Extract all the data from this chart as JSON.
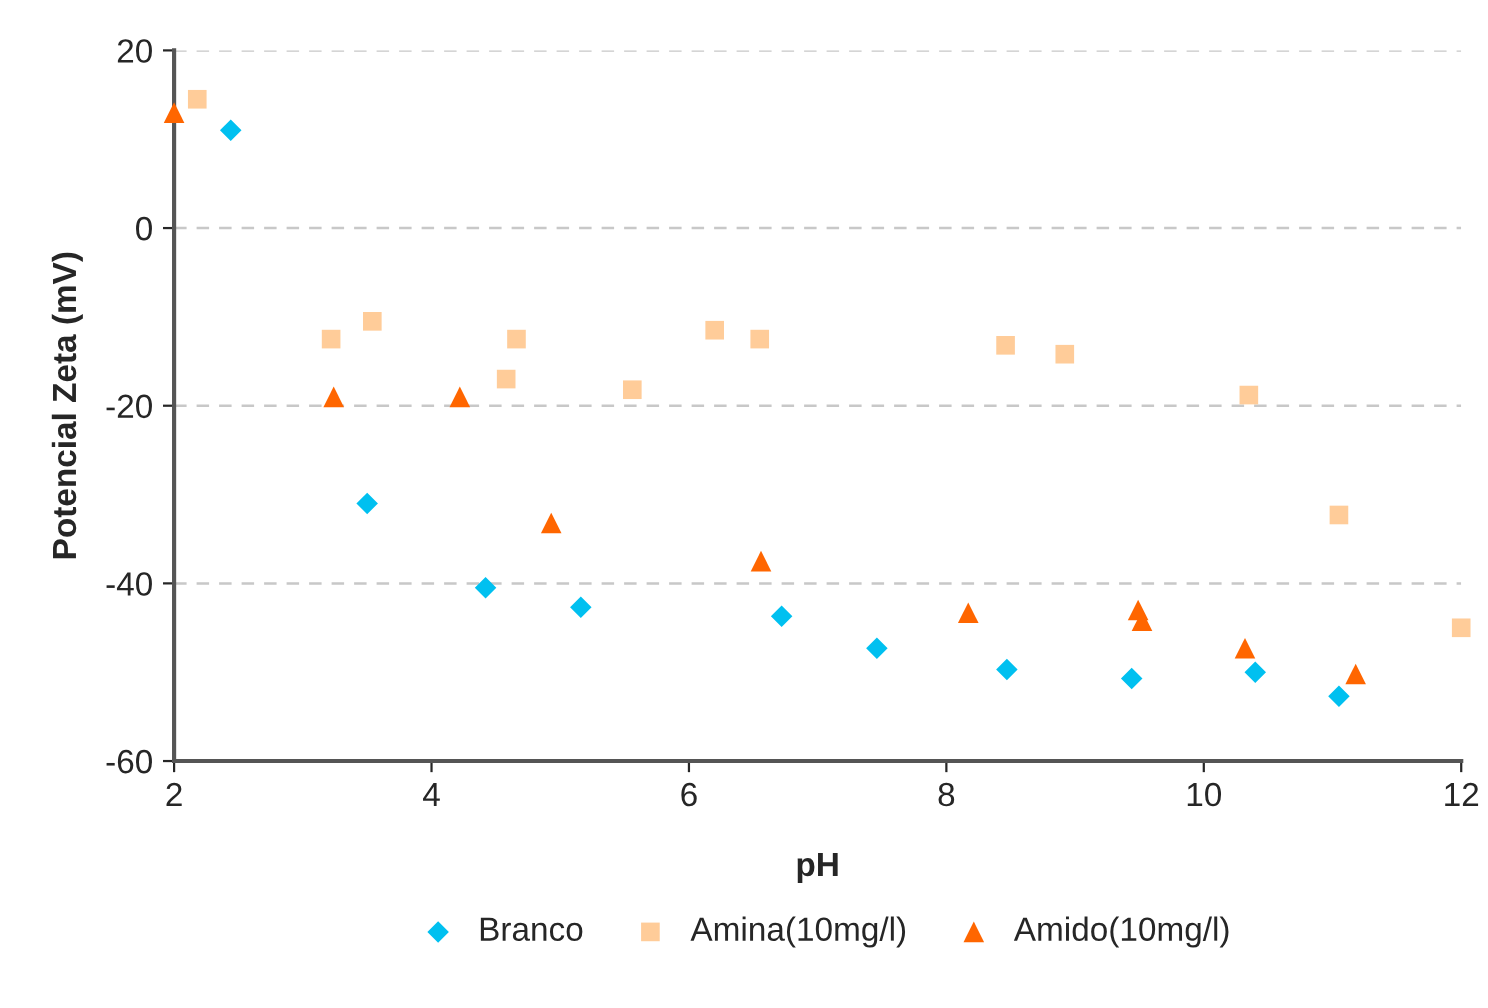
{
  "chart_data": {
    "type": "scatter",
    "xlabel": "pH",
    "ylabel": "Potencial Zeta (mV)",
    "xlim": [
      2,
      12
    ],
    "xticks": [
      2,
      4,
      6,
      8,
      10,
      12
    ],
    "ylim": [
      -60,
      20
    ],
    "yticks": [
      -60,
      -40,
      -20,
      0,
      20
    ],
    "grid": "y",
    "legend": "bottom",
    "series": [
      {
        "name": "Branco",
        "color": "#00c0f0",
        "marker": "diamond",
        "x": [
          2.44,
          3.5,
          4.42,
          5.16,
          6.72,
          7.46,
          8.47,
          9.44,
          10.4,
          11.05
        ],
        "values": [
          11,
          -31,
          -40.5,
          -42.7,
          -43.7,
          -47.3,
          -49.7,
          -50.7,
          -50,
          -52.7
        ]
      },
      {
        "name": "Amina(10mg/l)",
        "color": "#ffcc99",
        "marker": "square",
        "x": [
          2.18,
          3.22,
          3.54,
          4.58,
          4.66,
          5.56,
          6.2,
          6.55,
          8.46,
          8.92,
          10.35,
          11.05,
          12
        ],
        "values": [
          14.5,
          -12.5,
          -10.5,
          -17,
          -12.5,
          -18.2,
          -11.5,
          -12.5,
          -13.2,
          -14.2,
          -18.8,
          -32.3,
          -45
        ]
      },
      {
        "name": "Amido(10mg/l)",
        "color": "#ff6600",
        "marker": "triangle",
        "x": [
          2,
          3.24,
          4.22,
          4.93,
          6.56,
          8.17,
          9.49,
          9.52,
          10.32,
          11.18
        ],
        "values": [
          13,
          -19,
          -19,
          -33.2,
          -37.5,
          -43.3,
          -43,
          -44.2,
          -47.3,
          -50.2
        ]
      }
    ]
  }
}
